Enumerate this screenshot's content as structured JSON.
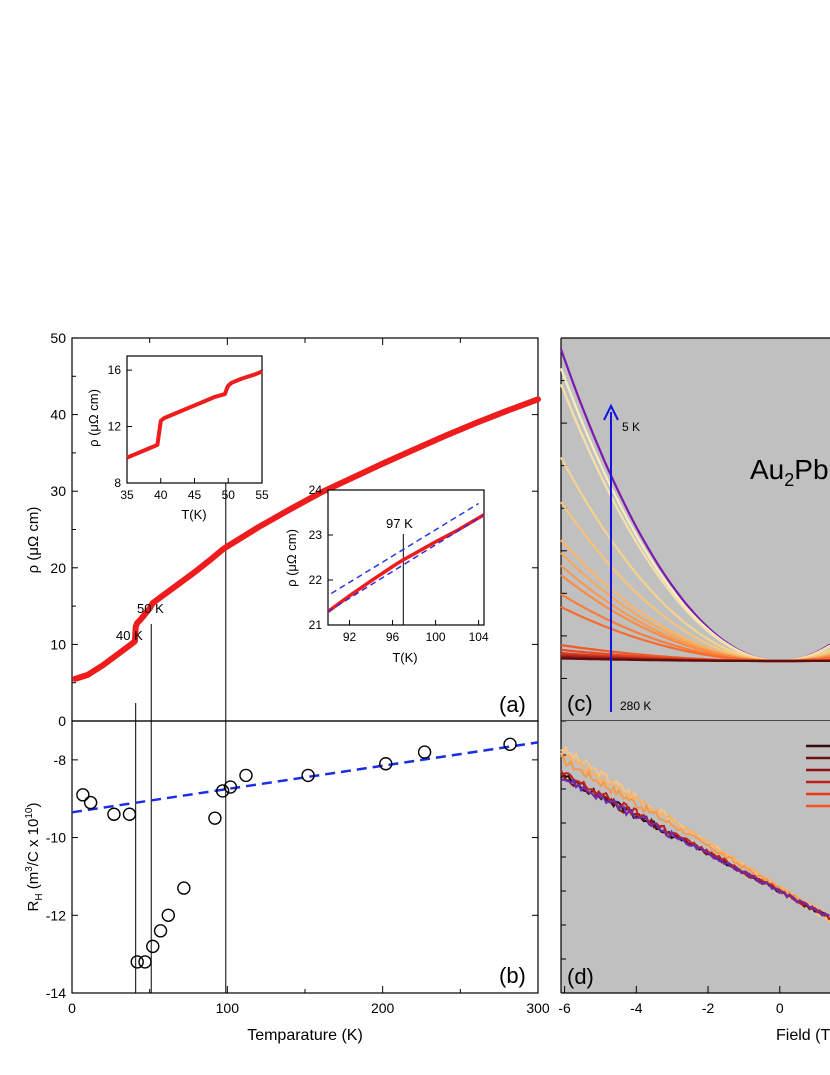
{
  "chart_data": [
    {
      "panel": "a",
      "type": "line",
      "label": "(a)",
      "xlim": [
        0,
        300
      ],
      "ylim": [
        0,
        50
      ],
      "ylabel": "ρ (μΩ cm)",
      "yticks": [
        0,
        10,
        20,
        30,
        40,
        50
      ],
      "series": [
        {
          "color": "#ee1c1c",
          "x": [
            2,
            10,
            20,
            30,
            38,
            40.5,
            41,
            42,
            44,
            48,
            50,
            52,
            60,
            70,
            80,
            90,
            97,
            100,
            120,
            140,
            160,
            180,
            200,
            220,
            240,
            260,
            280,
            300
          ],
          "y": [
            5.5,
            6.0,
            7.3,
            8.8,
            10.0,
            10.4,
            12.3,
            12.8,
            13.2,
            14.2,
            14.7,
            15.4,
            16.6,
            18.1,
            19.6,
            21.2,
            22.4,
            22.8,
            25.3,
            27.6,
            29.8,
            31.7,
            33.6,
            35.4,
            37.2,
            38.9,
            40.5,
            42.0
          ]
        }
      ],
      "annotations": [
        {
          "text": "40 K",
          "x": 41
        },
        {
          "text": "50 K",
          "x": 51
        },
        {
          "text": "",
          "x": 99
        }
      ]
    },
    {
      "panel": "a-inset-1",
      "type": "line",
      "xlabel": "T(K)",
      "ylabel": "ρ (μΩ cm)",
      "xlim": [
        35,
        55
      ],
      "ylim": [
        8,
        17
      ],
      "xticks": [
        35,
        40,
        45,
        50,
        55
      ],
      "yticks": [
        8,
        12,
        16
      ],
      "series": [
        {
          "color": "#ee1c1c",
          "x": [
            35,
            36,
            37,
            38,
            39,
            39.5,
            39.8,
            40,
            40.5,
            42,
            44,
            46,
            48,
            49.5,
            49.8,
            50,
            50.5,
            52,
            54,
            55
          ],
          "y": [
            9.8,
            10.0,
            10.2,
            10.4,
            10.6,
            10.7,
            11.7,
            12.4,
            12.6,
            12.9,
            13.3,
            13.7,
            14.1,
            14.3,
            14.7,
            14.9,
            15.1,
            15.4,
            15.7,
            15.9
          ]
        }
      ]
    },
    {
      "panel": "a-inset-2",
      "type": "line",
      "xlabel": "T(K)",
      "ylabel": "ρ (μΩ cm)",
      "xlim": [
        90,
        104.5
      ],
      "ylim": [
        21,
        24
      ],
      "xticks": [
        92,
        96,
        100,
        104
      ],
      "yticks": [
        21,
        22,
        23,
        24
      ],
      "annotation": "97 K",
      "annotation_x": 97,
      "series": [
        {
          "color": "#ee1c1c",
          "style": "solid",
          "x": [
            90,
            92,
            94,
            96,
            97,
            98,
            100,
            102,
            104.5
          ],
          "y": [
            21.3,
            21.65,
            21.98,
            22.3,
            22.45,
            22.58,
            22.85,
            23.1,
            23.45
          ]
        },
        {
          "color": "#3a2bd6",
          "style": "dashed",
          "x": [
            90,
            104.5
          ],
          "y": [
            21.3,
            23.45
          ]
        },
        {
          "color": "#2a3bd8",
          "style": "dashed",
          "x": [
            90.3,
            104
          ],
          "y": [
            21.7,
            23.7
          ]
        }
      ]
    },
    {
      "panel": "b",
      "type": "scatter",
      "label": "(b)",
      "xlabel": "Temparature (K)",
      "ylabel_main": "R",
      "ylabel_sub": "H",
      "ylabel_rest": " (m",
      "ylabel_sup": "3",
      "ylabel_rest2": "/C x 10",
      "ylabel_sup2": "10",
      "ylabel_end": ")",
      "xlim": [
        0,
        300
      ],
      "ylim": [
        -14,
        -7
      ],
      "xticks": [
        0,
        100,
        200,
        300
      ],
      "yticks": [
        -14,
        -12,
        -10,
        -8
      ],
      "points": {
        "x": [
          7,
          12,
          27,
          37,
          42,
          47,
          52,
          57,
          62,
          72,
          92,
          97,
          102,
          112,
          152,
          202,
          227,
          282
        ],
        "y": [
          -8.9,
          -9.1,
          -9.4,
          -9.4,
          -13.2,
          -13.2,
          -12.8,
          -12.4,
          -12.0,
          -11.3,
          -9.5,
          -8.8,
          -8.7,
          -8.4,
          -8.4,
          -8.1,
          -7.8,
          -7.6
        ]
      },
      "fit": {
        "color": "#1a2ee6",
        "x": [
          0,
          300
        ],
        "y": [
          -9.35,
          -7.55
        ]
      },
      "vlines": [
        41,
        51,
        100
      ]
    },
    {
      "panel": "c",
      "type": "line",
      "label": "(c)",
      "xlim": [
        -6.1,
        1.4
      ],
      "ylim": [
        0,
        1
      ],
      "title": "Au",
      "title_sub": "2",
      "title_rest": "Pb",
      "arrow_top": "5 K",
      "arrow_bottom": "280 K",
      "series": [
        {
          "color": "#7b18b0",
          "k": 0.98
        },
        {
          "color": "#f9eec2",
          "k": 0.92
        },
        {
          "color": "#f6e1a8",
          "k": 0.87
        },
        {
          "color": "#f5d38f",
          "k": 0.64
        },
        {
          "color": "#f5c57b",
          "k": 0.5
        },
        {
          "color": "#f7b66a",
          "k": 0.38
        },
        {
          "color": "#f7a85c",
          "k": 0.34
        },
        {
          "color": "#f79a4f",
          "k": 0.3
        },
        {
          "color": "#f88c45",
          "k": 0.27
        },
        {
          "color": "#f77d3b",
          "k": 0.21
        },
        {
          "color": "#f56c30",
          "k": 0.17
        },
        {
          "color": "#f05a28",
          "k": 0.05
        },
        {
          "color": "#e64a24",
          "k": 0.035
        },
        {
          "color": "#d63a1f",
          "k": 0.025
        },
        {
          "color": "#b7261b",
          "k": 0.018
        },
        {
          "color": "#8f1616",
          "k": 0.012
        },
        {
          "color": "#5a0f10",
          "k": 0.008
        }
      ]
    },
    {
      "panel": "d",
      "type": "line",
      "label": "(d)",
      "xlabel": "Field (T",
      "xlim": [
        -6.1,
        1.4
      ],
      "xticks": [
        -6,
        -4,
        -2,
        0
      ],
      "legend_colors": [
        "#3a0a0a",
        "#6a0f10",
        "#8c1216",
        "#c0201c",
        "#e8361f",
        "#f5512a"
      ],
      "series": [
        {
          "color": "#f9c482",
          "y0": 0.1,
          "slope": -0.085
        },
        {
          "color": "#f7b266",
          "y0": 0.12,
          "slope": -0.08
        },
        {
          "color": "#f39a4c",
          "y0": 0.14,
          "slope": -0.078
        },
        {
          "color": "#2b0909",
          "y0": 0.2,
          "slope": -0.07
        },
        {
          "color": "#7a1515",
          "y0": 0.2,
          "slope": -0.07
        },
        {
          "color": "#c0201c",
          "y0": 0.19,
          "slope": -0.071
        },
        {
          "color": "#6a2bb2",
          "y0": 0.205,
          "slope": -0.069
        }
      ]
    }
  ]
}
